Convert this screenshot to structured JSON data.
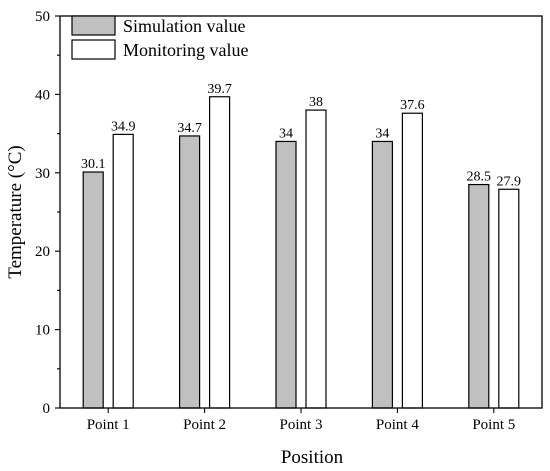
{
  "chart_data": {
    "type": "bar",
    "categories": [
      "Point 1",
      "Point 2",
      "Point 3",
      "Point 4",
      "Point 5"
    ],
    "series": [
      {
        "name": "Simulation value",
        "values": [
          30.1,
          34.7,
          34,
          34,
          28.5
        ],
        "color": "#c0c0c0"
      },
      {
        "name": "Monitoring value",
        "values": [
          34.9,
          39.7,
          38,
          37.6,
          27.9
        ],
        "color": "#ffffff"
      }
    ],
    "data_labels": [
      [
        "30.1",
        "34.7",
        "34",
        "34",
        "28.5"
      ],
      [
        "34.9",
        "39.7",
        "38",
        "37.6",
        "27.9"
      ]
    ],
    "xlabel": "Position",
    "ylabel": "Temperature (°C)",
    "ylim": [
      0,
      50
    ],
    "yticks": [
      0,
      10,
      20,
      30,
      40,
      50
    ],
    "grid": false,
    "legend_position": "top-left"
  }
}
